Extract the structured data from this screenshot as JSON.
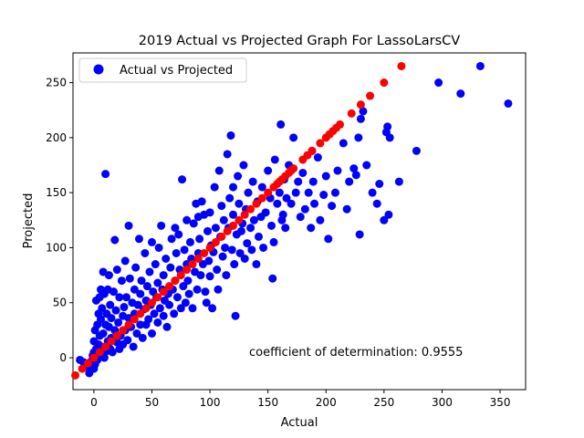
{
  "chart_data": {
    "type": "scatter",
    "title": "2019 Actual vs Projected Graph For LassoLarsCV",
    "xlabel": "Actual",
    "ylabel": "Projected",
    "xlim": [
      -18,
      372
    ],
    "ylim": [
      -29,
      277
    ],
    "xticks": [
      0,
      50,
      100,
      150,
      200,
      250,
      300,
      350
    ],
    "yticks": [
      0,
      50,
      100,
      150,
      200,
      250
    ],
    "legend": {
      "placement": "top-left",
      "label": "Actual vs Projected"
    },
    "annotation": "coefficient of determination: 0.9555",
    "grid": false,
    "colors": {
      "actual": "#0000ff",
      "projected": "#ff0000"
    },
    "series": [
      {
        "name": "Actual vs Projected",
        "color": "#0000ff",
        "points": [
          [
            -12,
            -2
          ],
          [
            -9,
            -4
          ],
          [
            -6,
            -8
          ],
          [
            -4,
            -14
          ],
          [
            -2,
            -3
          ],
          [
            -1,
            2
          ],
          [
            0,
            5
          ],
          [
            0,
            -10
          ],
          [
            0,
            15
          ],
          [
            1,
            -6
          ],
          [
            1,
            25
          ],
          [
            2,
            52
          ],
          [
            2,
            8
          ],
          [
            3,
            30
          ],
          [
            3,
            -2
          ],
          [
            4,
            12
          ],
          [
            4,
            40
          ],
          [
            5,
            55
          ],
          [
            5,
            20
          ],
          [
            5,
            3
          ],
          [
            6,
            62
          ],
          [
            6,
            35
          ],
          [
            7,
            10
          ],
          [
            7,
            45
          ],
          [
            8,
            78
          ],
          [
            8,
            22
          ],
          [
            9,
            0
          ],
          [
            9,
            58
          ],
          [
            10,
            30
          ],
          [
            10,
            167
          ],
          [
            11,
            6
          ],
          [
            11,
            40
          ],
          [
            12,
            15
          ],
          [
            12,
            62
          ],
          [
            13,
            28
          ],
          [
            13,
            75
          ],
          [
            14,
            8
          ],
          [
            14,
            48
          ],
          [
            15,
            18
          ],
          [
            15,
            36
          ],
          [
            16,
            5
          ],
          [
            17,
            60
          ],
          [
            18,
            25
          ],
          [
            18,
            107
          ],
          [
            19,
            43
          ],
          [
            20,
            14
          ],
          [
            20,
            80
          ],
          [
            21,
            32
          ],
          [
            22,
            55
          ],
          [
            22,
            8
          ],
          [
            23,
            20
          ],
          [
            24,
            70
          ],
          [
            25,
            38
          ],
          [
            25,
            12
          ],
          [
            26,
            46
          ],
          [
            27,
            88
          ],
          [
            27,
            25
          ],
          [
            28,
            55
          ],
          [
            29,
            16
          ],
          [
            30,
            120
          ],
          [
            30,
            36
          ],
          [
            31,
            72
          ],
          [
            32,
            28
          ],
          [
            33,
            50
          ],
          [
            34,
            10
          ],
          [
            35,
            62
          ],
          [
            35,
            40
          ],
          [
            36,
            82
          ],
          [
            37,
            22
          ],
          [
            38,
            48
          ],
          [
            39,
            108
          ],
          [
            40,
            30
          ],
          [
            40,
            58
          ],
          [
            41,
            70
          ],
          [
            42,
            18
          ],
          [
            43,
            44
          ],
          [
            44,
            95
          ],
          [
            45,
            30
          ],
          [
            45,
            52
          ],
          [
            46,
            65
          ],
          [
            47,
            35
          ],
          [
            48,
            78
          ],
          [
            49,
            48
          ],
          [
            50,
            105
          ],
          [
            50,
            22
          ],
          [
            51,
            60
          ],
          [
            52,
            40
          ],
          [
            53,
            85
          ],
          [
            54,
            55
          ],
          [
            55,
            32
          ],
          [
            55,
            68
          ],
          [
            56,
            100
          ],
          [
            57,
            45
          ],
          [
            58,
            120
          ],
          [
            59,
            62
          ],
          [
            60,
            38
          ],
          [
            60,
            75
          ],
          [
            61,
            52
          ],
          [
            62,
            90
          ],
          [
            63,
            28
          ],
          [
            64,
            58
          ],
          [
            65,
            48
          ],
          [
            66,
            82
          ],
          [
            67,
            108
          ],
          [
            68,
            62
          ],
          [
            69,
            40
          ],
          [
            70,
            118
          ],
          [
            70,
            70
          ],
          [
            71,
            95
          ],
          [
            72,
            55
          ],
          [
            73,
            112
          ],
          [
            74,
            80
          ],
          [
            75,
            45
          ],
          [
            76,
            162
          ],
          [
            77,
            65
          ],
          [
            78,
            98
          ],
          [
            79,
            50
          ],
          [
            80,
            125
          ],
          [
            80,
            85
          ],
          [
            81,
            70
          ],
          [
            82,
            58
          ],
          [
            83,
            105
          ],
          [
            84,
            90
          ],
          [
            85,
            45
          ],
          [
            86,
            122
          ],
          [
            87,
            78
          ],
          [
            88,
            140
          ],
          [
            89,
            62
          ],
          [
            90,
            128
          ],
          [
            90,
            95
          ],
          [
            91,
            108
          ],
          [
            92,
            75
          ],
          [
            93,
            142
          ],
          [
            94,
            85
          ],
          [
            95,
            130
          ],
          [
            96,
            60
          ],
          [
            97,
            50
          ],
          [
            98,
            115
          ],
          [
            99,
            88
          ],
          [
            100,
            74
          ],
          [
            100,
            132
          ],
          [
            101,
            102
          ],
          [
            102,
            45
          ],
          [
            103,
            96
          ],
          [
            104,
            155
          ],
          [
            105,
            118
          ],
          [
            106,
            80
          ],
          [
            107,
            62
          ],
          [
            108,
            170
          ],
          [
            109,
            110
          ],
          [
            110,
            138
          ],
          [
            111,
            92
          ],
          [
            112,
            125
          ],
          [
            113,
            100
          ],
          [
            114,
            75
          ],
          [
            115,
            185
          ],
          [
            116,
            118
          ],
          [
            117,
            145
          ],
          [
            118,
            202
          ],
          [
            119,
            98
          ],
          [
            120,
            130
          ],
          [
            120,
            155
          ],
          [
            121,
            85
          ],
          [
            122,
            38
          ],
          [
            123,
            112
          ],
          [
            124,
            165
          ],
          [
            125,
            140
          ],
          [
            126,
            95
          ],
          [
            127,
            115
          ],
          [
            128,
            122
          ],
          [
            129,
            175
          ],
          [
            130,
            90
          ],
          [
            131,
            135
          ],
          [
            132,
            104
          ],
          [
            133,
            150
          ],
          [
            135,
            118
          ],
          [
            136,
            98
          ],
          [
            137,
            160
          ],
          [
            138,
            125
          ],
          [
            140,
            85
          ],
          [
            141,
            142
          ],
          [
            142,
            110
          ],
          [
            144,
            128
          ],
          [
            145,
            155
          ],
          [
            146,
            100
          ],
          [
            148,
            132
          ],
          [
            150,
            170
          ],
          [
            152,
            145
          ],
          [
            153,
            120
          ],
          [
            154,
            72
          ],
          [
            155,
            105
          ],
          [
            156,
            180
          ],
          [
            158,
            140
          ],
          [
            160,
            150
          ],
          [
            161,
            212
          ],
          [
            162,
            125
          ],
          [
            163,
            130
          ],
          [
            164,
            162
          ],
          [
            165,
            118
          ],
          [
            166,
            145
          ],
          [
            168,
            175
          ],
          [
            170,
            140
          ],
          [
            172,
            200
          ],
          [
            174,
            150
          ],
          [
            176,
            160
          ],
          [
            178,
            128
          ],
          [
            180,
            168
          ],
          [
            182,
            135
          ],
          [
            185,
            150
          ],
          [
            187,
            118
          ],
          [
            188,
            188
          ],
          [
            189,
            160
          ],
          [
            190,
            140
          ],
          [
            193,
            182
          ],
          [
            195,
            125
          ],
          [
            198,
            148
          ],
          [
            200,
            165
          ],
          [
            202,
            108
          ],
          [
            205,
            138
          ],
          [
            208,
            150
          ],
          [
            210,
            170
          ],
          [
            215,
            195
          ],
          [
            218,
            135
          ],
          [
            220,
            160
          ],
          [
            224,
            172
          ],
          [
            226,
            166
          ],
          [
            228,
            200
          ],
          [
            229,
            112
          ],
          [
            230,
            217
          ],
          [
            232,
            224
          ],
          [
            235,
            175
          ],
          [
            240,
            150
          ],
          [
            244,
            140
          ],
          [
            246,
            158
          ],
          [
            250,
            125
          ],
          [
            252,
            205
          ],
          [
            253,
            210
          ],
          [
            254,
            130
          ],
          [
            255,
            200
          ],
          [
            263,
            160
          ],
          [
            278,
            188
          ],
          [
            297,
            250
          ],
          [
            316,
            240
          ],
          [
            333,
            265
          ],
          [
            357,
            231
          ]
        ]
      },
      {
        "name": "",
        "color": "#ff0000",
        "points": [
          [
            -16,
            -16
          ],
          [
            -10,
            -10
          ],
          [
            -5,
            -5
          ],
          [
            0,
            0
          ],
          [
            5,
            5
          ],
          [
            10,
            10
          ],
          [
            15,
            15
          ],
          [
            20,
            20
          ],
          [
            25,
            25
          ],
          [
            30,
            30
          ],
          [
            35,
            35
          ],
          [
            40,
            40
          ],
          [
            45,
            45
          ],
          [
            50,
            50
          ],
          [
            55,
            55
          ],
          [
            60,
            60
          ],
          [
            65,
            65
          ],
          [
            70,
            70
          ],
          [
            75,
            75
          ],
          [
            80,
            80
          ],
          [
            85,
            85
          ],
          [
            90,
            90
          ],
          [
            95,
            95
          ],
          [
            100,
            100
          ],
          [
            105,
            105
          ],
          [
            110,
            110
          ],
          [
            115,
            115
          ],
          [
            120,
            120
          ],
          [
            125,
            125
          ],
          [
            130,
            130
          ],
          [
            135,
            135
          ],
          [
            140,
            140
          ],
          [
            145,
            145
          ],
          [
            150,
            150
          ],
          [
            155,
            155
          ],
          [
            158,
            158
          ],
          [
            160,
            160
          ],
          [
            162,
            162
          ],
          [
            165,
            165
          ],
          [
            168,
            168
          ],
          [
            170,
            170
          ],
          [
            172,
            172
          ],
          [
            180,
            180
          ],
          [
            184,
            184
          ],
          [
            188,
            188
          ],
          [
            195,
            195
          ],
          [
            200,
            200
          ],
          [
            203,
            203
          ],
          [
            206,
            206
          ],
          [
            209,
            209
          ],
          [
            212,
            212
          ],
          [
            222,
            222
          ],
          [
            230,
            230
          ],
          [
            238,
            238
          ],
          [
            250,
            250
          ],
          [
            265,
            265
          ]
        ]
      }
    ]
  }
}
